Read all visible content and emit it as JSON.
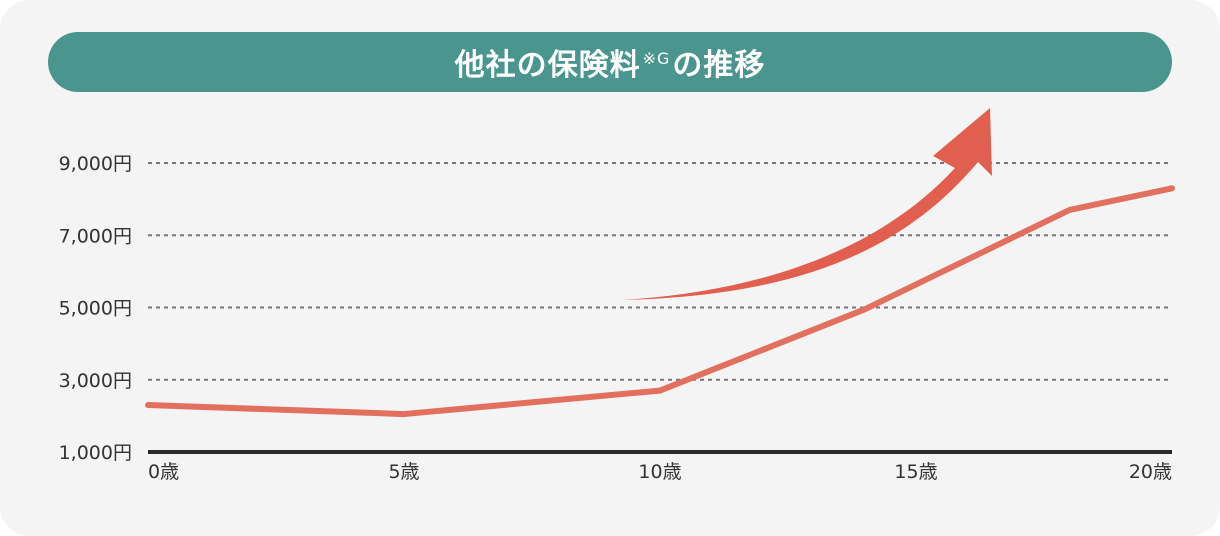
{
  "title": {
    "main": "他社の保険料",
    "note": "※G",
    "suffix": "の推移"
  },
  "colors": {
    "header": "#4a968f",
    "line": "#e2705f",
    "arrow": "#e05f4f",
    "axis": "#2b2b2b",
    "grid": "#777777",
    "background": "#f4f4f4"
  },
  "chart_data": {
    "type": "line",
    "title": "他社の保険料※Gの推移",
    "xlabel": "",
    "ylabel": "",
    "x_ticks": [
      {
        "value": 0,
        "label": "0歳"
      },
      {
        "value": 5,
        "label": "5歳"
      },
      {
        "value": 10,
        "label": "10歳"
      },
      {
        "value": 15,
        "label": "15歳"
      },
      {
        "value": 20,
        "label": "20歳"
      }
    ],
    "y_ticks": [
      {
        "value": 1000,
        "label": "1,000円"
      },
      {
        "value": 3000,
        "label": "3,000円"
      },
      {
        "value": 5000,
        "label": "5,000円"
      },
      {
        "value": 7000,
        "label": "7,000円"
      },
      {
        "value": 9000,
        "label": "9,000円"
      }
    ],
    "xlim": [
      0,
      20
    ],
    "ylim": [
      1000,
      9000
    ],
    "grid": "horizontal-dashed",
    "series": [
      {
        "x": [
          0,
          5,
          10,
          14,
          18,
          20
        ],
        "y": [
          2300,
          2050,
          2700,
          4950,
          7700,
          8300
        ]
      }
    ],
    "annotations": [
      {
        "type": "upward-curved-arrow"
      }
    ]
  }
}
